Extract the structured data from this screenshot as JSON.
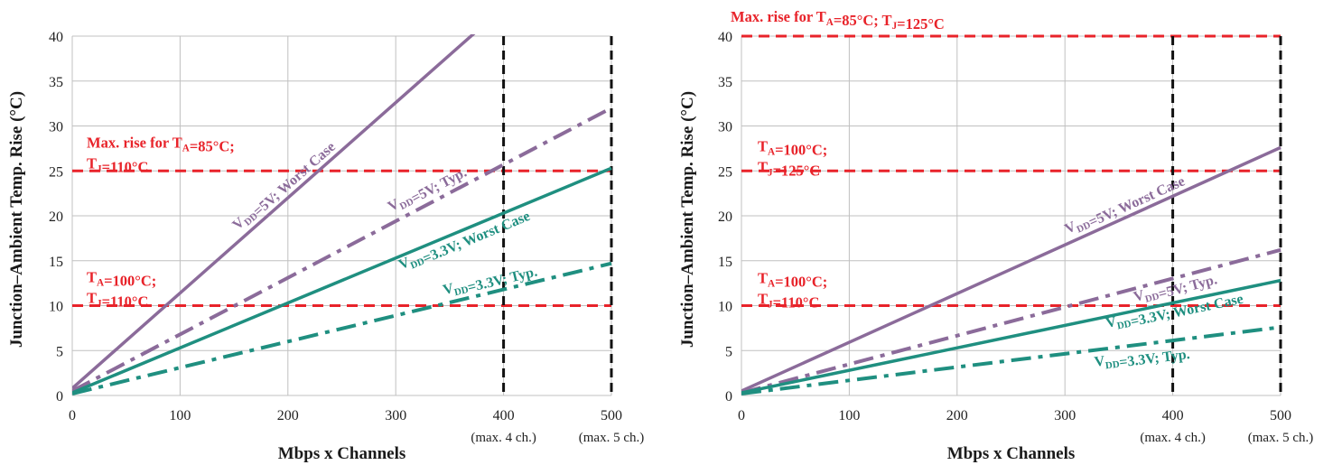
{
  "colors": {
    "limit": "#e8232a",
    "maxline": "#111111",
    "v5": "#8b6b9a",
    "v33": "#1f8f80",
    "grid": "#c0c0c0"
  },
  "chart_data": [
    {
      "type": "line",
      "xlabel": "Mbps x Channels",
      "ylabel": "Junction–Ambient Temp. Rise (°C)",
      "xlim": [
        0,
        500
      ],
      "ylim": [
        0,
        40
      ],
      "xticks": [
        0,
        100,
        200,
        300,
        400,
        500
      ],
      "yticks": [
        0,
        5,
        10,
        15,
        20,
        25,
        30,
        35,
        40
      ],
      "grid": true,
      "x_notes": [
        {
          "x": 400,
          "text": "(max. 4 ch.)"
        },
        {
          "x": 500,
          "text": "(max. 5 ch.)"
        }
      ],
      "vlines": [
        400,
        500
      ],
      "hlines": [
        25,
        10
      ],
      "limit_labels": [
        {
          "y": 25,
          "lines": [
            "Max. rise for T_A=85°C;",
            "T_J=110°C"
          ]
        },
        {
          "y": 10,
          "lines": [
            "T_A=100°C;",
            "T_J=110°C"
          ]
        }
      ],
      "series": [
        {
          "name": "V_DD=5V; Worst Case",
          "color": "v5",
          "dash": "solid",
          "x": [
            0,
            500
          ],
          "y": [
            0.8,
            53.8
          ]
        },
        {
          "name": "V_DD=5V; Typ.",
          "color": "v5",
          "dash": "dashdot",
          "x": [
            0,
            500
          ],
          "y": [
            0.5,
            32
          ]
        },
        {
          "name": "V_DD=3.3V; Worst Case",
          "color": "v33",
          "dash": "solid",
          "x": [
            0,
            500
          ],
          "y": [
            0.3,
            25.3
          ]
        },
        {
          "name": "V_DD=3.3V; Typ.",
          "color": "v33",
          "dash": "dashdot",
          "x": [
            0,
            500
          ],
          "y": [
            0.2,
            14.7
          ]
        }
      ]
    },
    {
      "type": "line",
      "xlabel": "Mbps x Channels",
      "ylabel": "Junction–Ambient Temp. Rise (°C)",
      "xlim": [
        0,
        500
      ],
      "ylim": [
        0,
        40
      ],
      "xticks": [
        0,
        100,
        200,
        300,
        400,
        500
      ],
      "yticks": [
        0,
        5,
        10,
        15,
        20,
        25,
        30,
        35,
        40
      ],
      "grid": true,
      "x_notes": [
        {
          "x": 400,
          "text": "(max. 4 ch.)"
        },
        {
          "x": 500,
          "text": "(max. 5 ch.)"
        }
      ],
      "vlines": [
        400,
        500
      ],
      "hlines": [
        40,
        25,
        10
      ],
      "limit_labels": [
        {
          "y": 40,
          "lines": [
            "Max. rise for T_A=85°C; T_J=125°C"
          ]
        },
        {
          "y": 25,
          "lines": [
            "T_A=100°C;",
            "T_J=125°C"
          ]
        },
        {
          "y": 10,
          "lines": [
            "T_A=100°C;",
            "T_J=110°C"
          ]
        }
      ],
      "series": [
        {
          "name": "V_DD=5V; Worst Case",
          "color": "v5",
          "dash": "solid",
          "x": [
            0,
            500
          ],
          "y": [
            0.5,
            27.6
          ]
        },
        {
          "name": "V_DD=5V; Typ.",
          "color": "v5",
          "dash": "dashdot",
          "x": [
            0,
            500
          ],
          "y": [
            0.3,
            16.2
          ]
        },
        {
          "name": "V_DD=3.3V; Worst Case",
          "color": "v33",
          "dash": "solid",
          "x": [
            0,
            500
          ],
          "y": [
            0.3,
            12.8
          ]
        },
        {
          "name": "V_DD=3.3V; Typ.",
          "color": "v33",
          "dash": "dashdot",
          "x": [
            0,
            500
          ],
          "y": [
            0.2,
            7.6
          ]
        }
      ]
    }
  ]
}
